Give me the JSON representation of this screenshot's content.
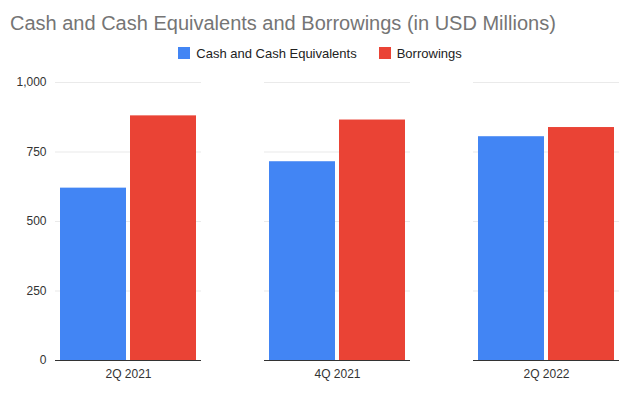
{
  "chart_data": {
    "type": "bar",
    "title": "Cash and Cash Equivalents and Borrowings (in USD Millions)",
    "categories": [
      "2Q 2021",
      "4Q 2021",
      "2Q 2022"
    ],
    "series": [
      {
        "name": "Cash and Cash Equivalents",
        "color": "#4285f4",
        "values": [
          620,
          715,
          805
        ]
      },
      {
        "name": "Borrowings",
        "color": "#ea4335",
        "values": [
          880,
          865,
          838
        ]
      }
    ],
    "ylim": [
      0,
      1000
    ],
    "yticks": [
      0,
      250,
      500,
      750,
      1000
    ],
    "grid": true,
    "legend": "top"
  }
}
